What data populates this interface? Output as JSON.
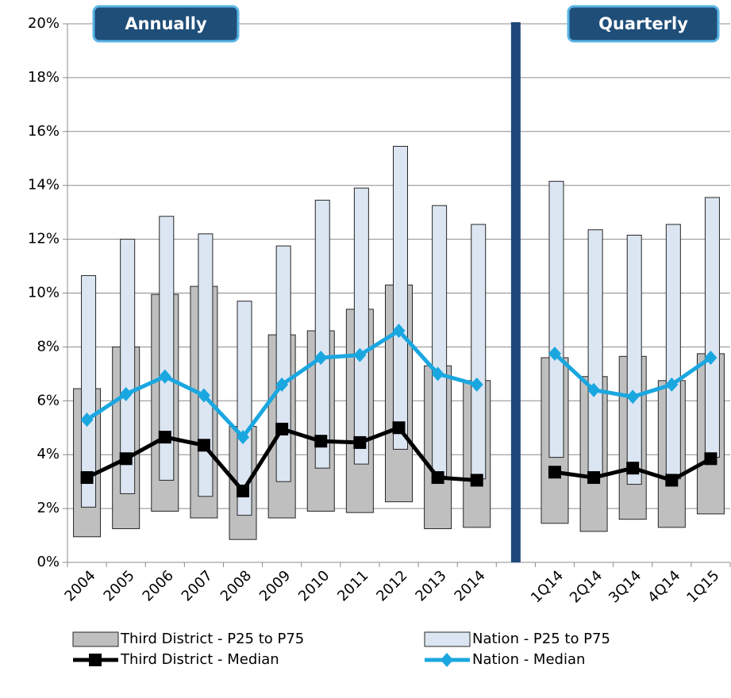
{
  "chart_data": {
    "type": "range-bar-line",
    "categories": [
      "2004",
      "2005",
      "2006",
      "2007",
      "2008",
      "2009",
      "2010",
      "2011",
      "2012",
      "2013",
      "2014",
      null,
      "1Q14",
      "2Q14",
      "3Q14",
      "4Q14",
      "1Q15"
    ],
    "annotations": [
      "Annually",
      "Quarterly"
    ],
    "ylim": [
      0,
      20
    ],
    "yticks": [
      {
        "value": 0,
        "label": "0%"
      },
      {
        "value": 2,
        "label": "2%"
      },
      {
        "value": 4,
        "label": "4%"
      },
      {
        "value": 6,
        "label": "6%"
      },
      {
        "value": 8,
        "label": "8%"
      },
      {
        "value": 10,
        "label": "10%"
      },
      {
        "value": 12,
        "label": "12%"
      },
      {
        "value": 14,
        "label": "14%"
      },
      {
        "value": 16,
        "label": "16%"
      },
      {
        "value": 18,
        "label": "18%"
      },
      {
        "value": 20,
        "label": "20%"
      }
    ],
    "grid": true,
    "series": [
      {
        "name": "Third District - P25 to P75",
        "kind": "range",
        "color": "#bfbfbf",
        "low": [
          0.95,
          1.25,
          1.9,
          1.65,
          0.85,
          1.65,
          1.9,
          1.85,
          2.25,
          1.25,
          1.3,
          null,
          1.45,
          1.15,
          1.6,
          1.3,
          1.8
        ],
        "high": [
          6.45,
          8.0,
          9.95,
          10.25,
          5.05,
          8.45,
          8.6,
          9.4,
          10.3,
          7.3,
          6.75,
          null,
          7.6,
          6.9,
          7.65,
          6.75,
          7.75
        ]
      },
      {
        "name": "Nation - P25 to P75",
        "kind": "range",
        "color": "#dce6f2",
        "low": [
          2.05,
          2.55,
          3.05,
          2.45,
          1.75,
          3.0,
          3.5,
          3.65,
          4.2,
          3.2,
          3.1,
          null,
          3.9,
          3.2,
          2.9,
          3.1,
          3.9
        ],
        "high": [
          10.65,
          12.0,
          12.85,
          12.2,
          9.7,
          11.75,
          13.45,
          13.9,
          15.45,
          13.25,
          12.55,
          null,
          14.15,
          12.35,
          12.15,
          12.55,
          13.55
        ]
      },
      {
        "name": "Third District - Median",
        "kind": "line",
        "marker": "square",
        "color": "#000000",
        "values": [
          3.15,
          3.85,
          4.65,
          4.35,
          2.65,
          4.95,
          4.5,
          4.45,
          5.0,
          3.15,
          3.05,
          null,
          3.35,
          3.15,
          3.5,
          3.05,
          3.85
        ]
      },
      {
        "name": "Nation - Median",
        "kind": "line",
        "marker": "diamond",
        "color": "#1aa7e0",
        "values": [
          5.3,
          6.25,
          6.9,
          6.2,
          4.65,
          6.6,
          7.6,
          7.7,
          8.6,
          7.0,
          6.6,
          null,
          7.75,
          6.4,
          6.15,
          6.6,
          7.6
        ]
      }
    ]
  }
}
